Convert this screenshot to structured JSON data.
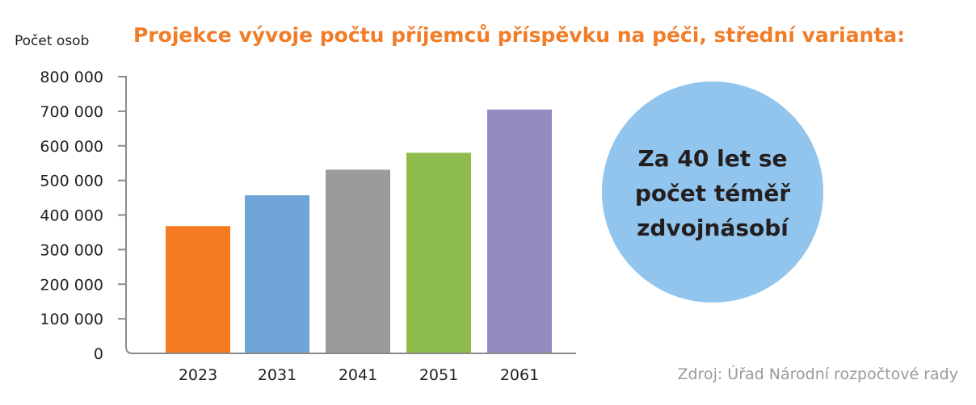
{
  "chart_data": {
    "type": "bar",
    "title": "Projekce vývoje počtu příjemců příspěvku na péči, střední varianta:",
    "ylabel": "Počet osob",
    "xlabel": "",
    "categories": [
      "2023",
      "2031",
      "2041",
      "2051",
      "2061"
    ],
    "values": [
      368000,
      457000,
      531000,
      580000,
      705000
    ],
    "colors": [
      "#f47b20",
      "#70a5d8",
      "#9b9b9b",
      "#8dbb4c",
      "#928cc2"
    ],
    "ylim": [
      0,
      800000
    ],
    "yticks": [
      0,
      100000,
      200000,
      300000,
      400000,
      500000,
      600000,
      700000,
      800000
    ],
    "ytick_labels": [
      "0",
      "100 000",
      "200 000",
      "300 000",
      "400 000",
      "500 000",
      "600 000",
      "700 000",
      "800 000"
    ],
    "grid": false,
    "legend": "none"
  },
  "callout": {
    "lines": [
      "Za 40 let se",
      "počet téměř",
      "zdvojnásobí"
    ],
    "color": "#92c5ed"
  },
  "source": "Zdroj: Úřad Národní rozpočtové rady"
}
